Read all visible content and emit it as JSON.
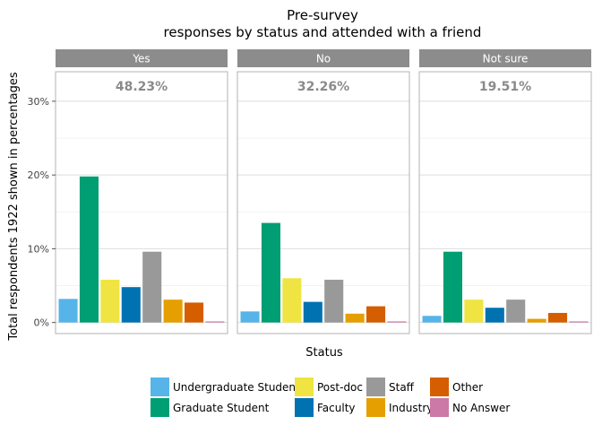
{
  "chart_data": {
    "type": "bar",
    "title_line1": "Pre-survey",
    "title_line2": "responses by status and attended with a friend",
    "xlabel": "Status",
    "ylabel": "Total respondents 1922 shown in percentages",
    "ylim": [
      -1.5,
      34
    ],
    "yticks": [
      0,
      10,
      20,
      30
    ],
    "ytick_labels": [
      "0%",
      "10%",
      "20%",
      "30%"
    ],
    "grid": true,
    "legend_position": "bottom",
    "categories": [
      "Undergraduate Student",
      "Graduate Student",
      "Post-doc",
      "Faculty",
      "Staff",
      "Industry",
      "Other",
      "No Answer"
    ],
    "colors": [
      "#56B4E9",
      "#009E73",
      "#F0E442",
      "#0072B2",
      "#999999",
      "#E69F00",
      "#D55E00",
      "#CC79A7"
    ],
    "legend": [
      {
        "label": "Undergraduate Student",
        "color": "#56B4E9"
      },
      {
        "label": "Graduate Student",
        "color": "#009E73"
      },
      {
        "label": "Post-doc",
        "color": "#F0E442"
      },
      {
        "label": "Faculty",
        "color": "#0072B2"
      },
      {
        "label": "Staff",
        "color": "#999999"
      },
      {
        "label": "Industry",
        "color": "#E69F00"
      },
      {
        "label": "Other",
        "color": "#D55E00"
      },
      {
        "label": "No Answer",
        "color": "#CC79A7"
      }
    ],
    "panels": [
      {
        "label": "Yes",
        "total_label": "48.23%",
        "values": [
          3.2,
          19.8,
          5.8,
          4.8,
          9.6,
          3.1,
          2.7,
          0.15
        ]
      },
      {
        "label": "No",
        "total_label": "32.26%",
        "values": [
          1.5,
          13.5,
          6.0,
          2.8,
          5.8,
          1.2,
          2.2,
          0.15
        ]
      },
      {
        "label": "Not sure",
        "total_label": "19.51%",
        "values": [
          0.9,
          9.6,
          3.1,
          2.0,
          3.1,
          0.5,
          1.3,
          0.15
        ]
      }
    ]
  }
}
